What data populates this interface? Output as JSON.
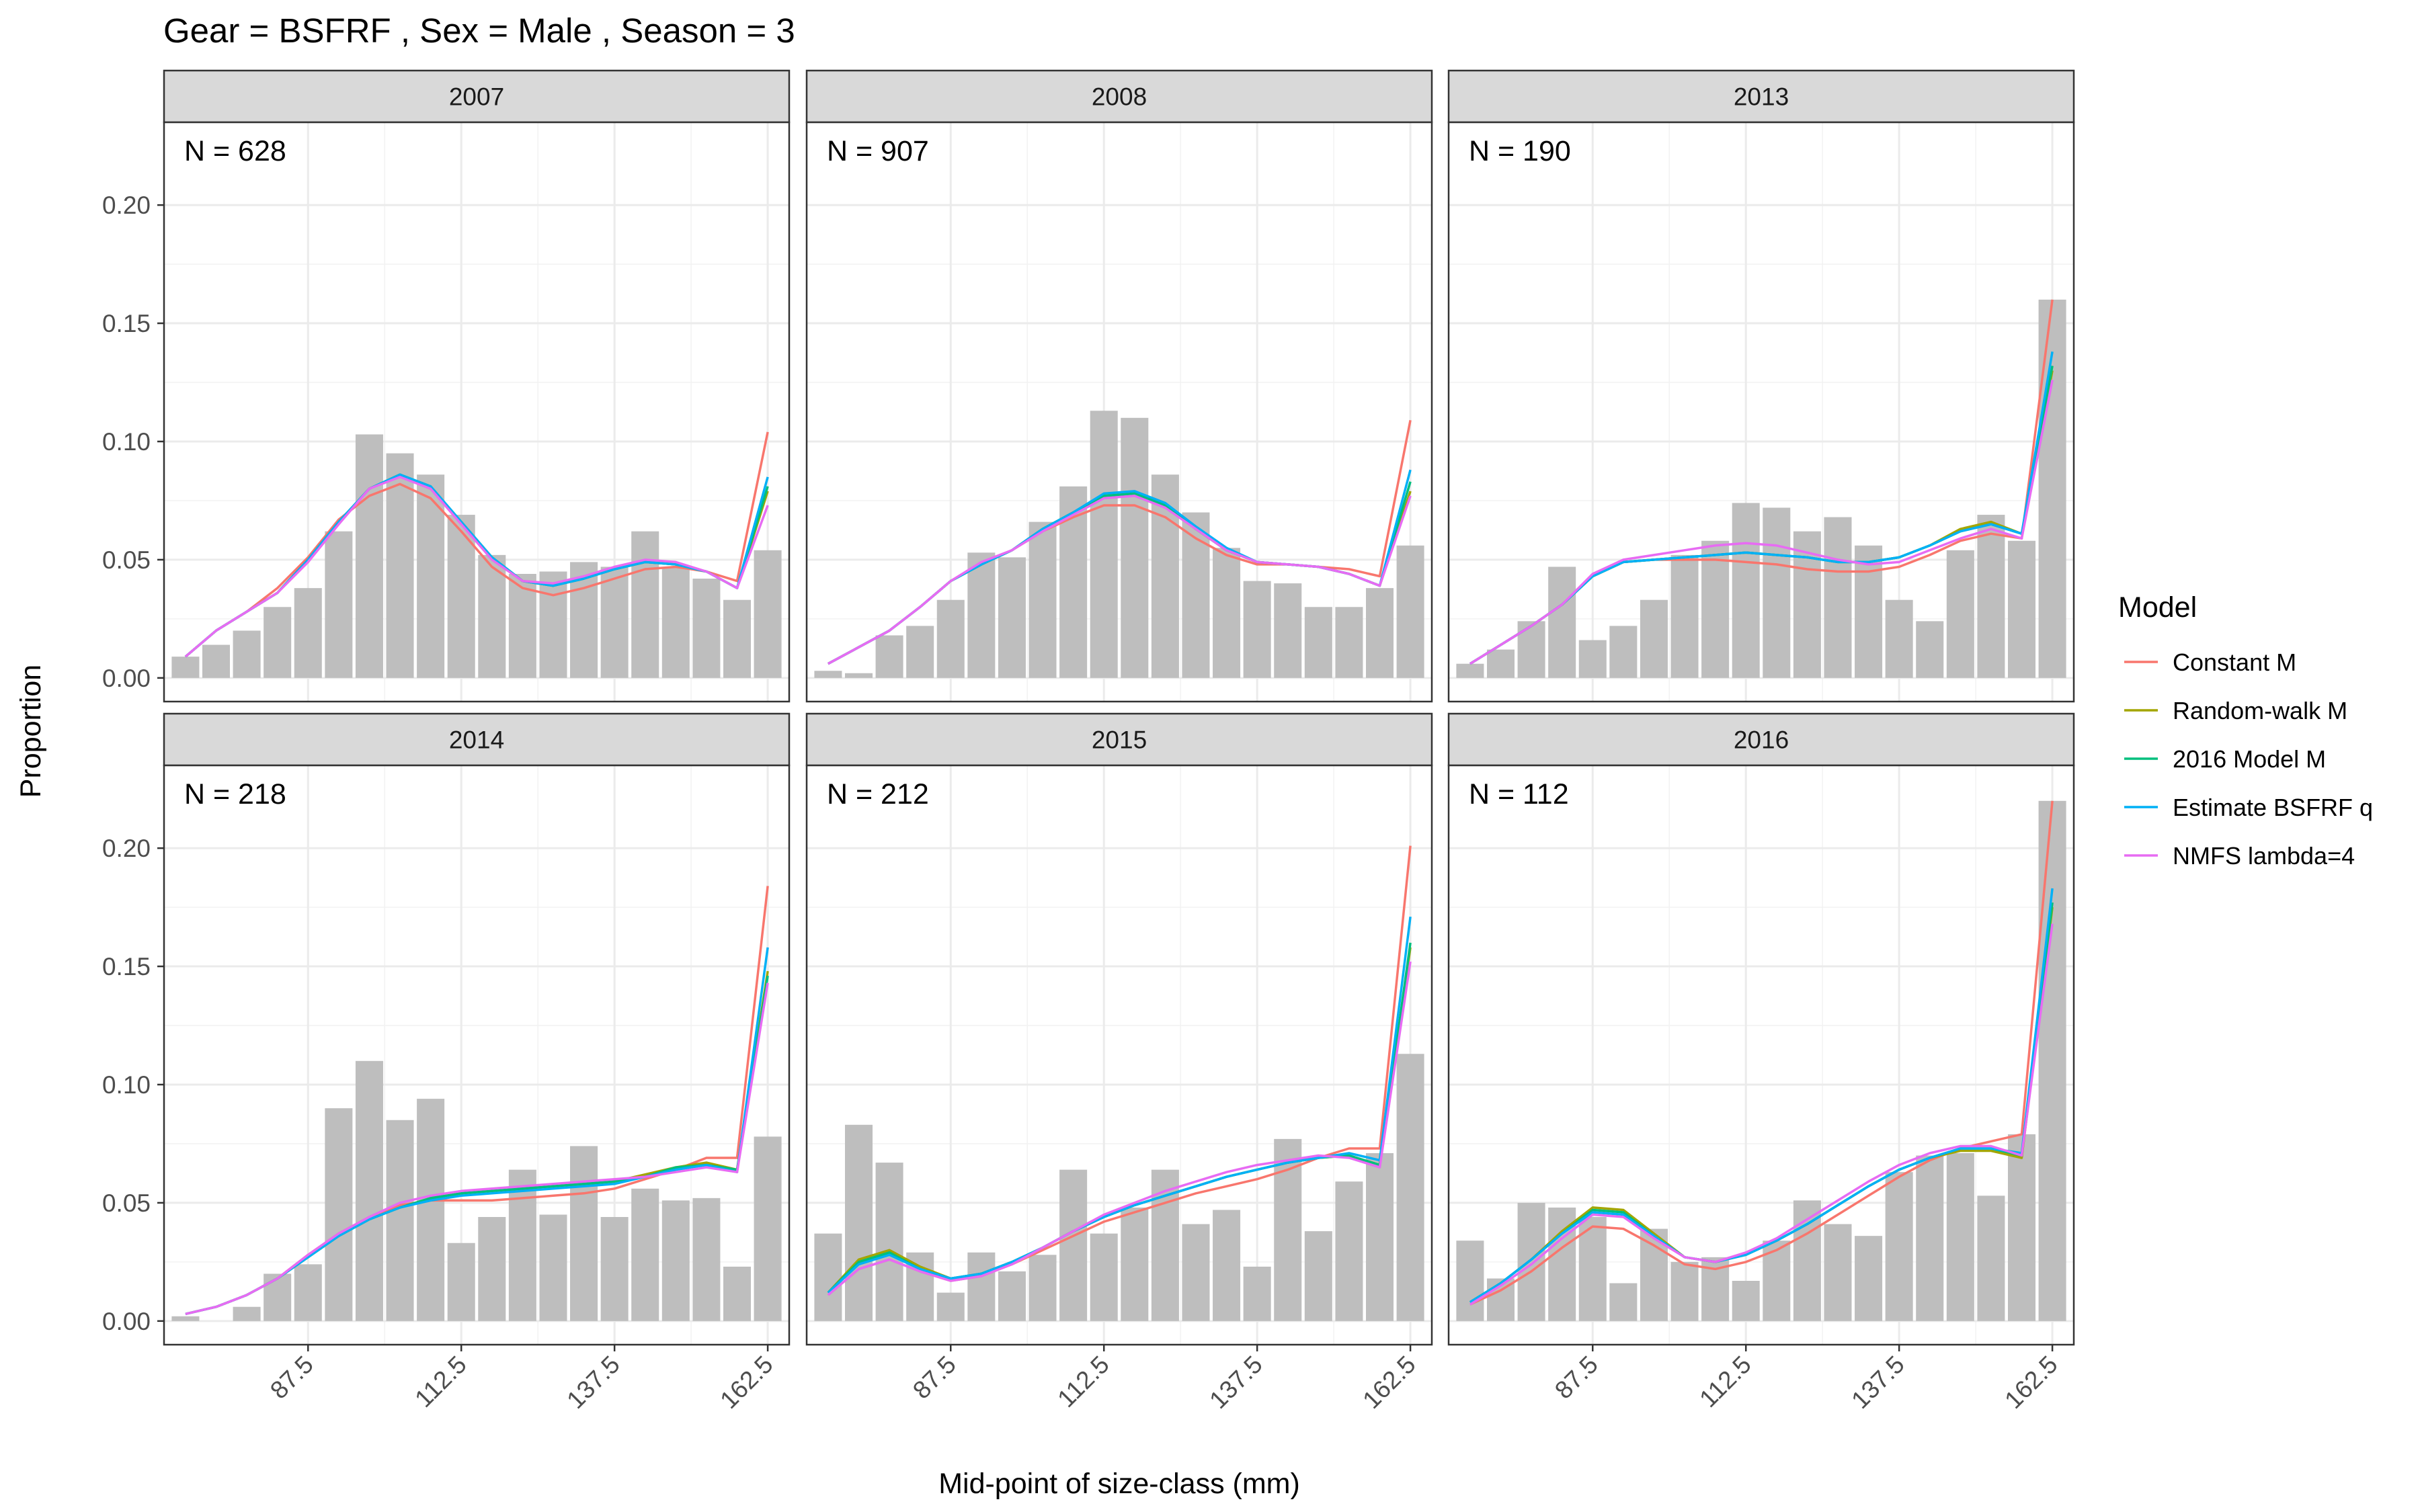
{
  "chart_data": {
    "type": "bar",
    "title": "Gear = BSFRF , Sex = Male , Season = 3",
    "xlabel": "Mid-point of size-class (mm)",
    "ylabel": "Proportion",
    "x": [
      67.5,
      72.5,
      77.5,
      82.5,
      87.5,
      92.5,
      97.5,
      102.5,
      107.5,
      112.5,
      117.5,
      122.5,
      127.5,
      132.5,
      137.5,
      142.5,
      147.5,
      152.5,
      157.5,
      162.5
    ],
    "xticks": [
      87.5,
      112.5,
      137.5,
      162.5
    ],
    "xtick_labels": [
      "87.5",
      "112.5",
      "137.5",
      "162.5"
    ],
    "xlim": [
      64.0,
      166.0
    ],
    "ylim": [
      -0.01,
      0.235
    ],
    "yticks": [
      0.0,
      0.05,
      0.1,
      0.15,
      0.2
    ],
    "ytick_labels": [
      "0.00",
      "0.05",
      "0.10",
      "0.15",
      "0.20"
    ],
    "grid": true,
    "bar_color": "#bebebe",
    "legend": {
      "title": "Model",
      "position": "right",
      "items": [
        {
          "name": "Constant M",
          "color": "#f8766d"
        },
        {
          "name": "Random-walk M",
          "color": "#a3a500"
        },
        {
          "name": "2016 Model M",
          "color": "#00bf7d"
        },
        {
          "name": "Estimate BSFRF q",
          "color": "#00b0f6"
        },
        {
          "name": "NMFS lambda=4",
          "color": "#e76bf3"
        }
      ]
    },
    "panels": [
      {
        "strip": "2007",
        "n_label": "N = 628",
        "bars": [
          0.009,
          0.014,
          0.02,
          0.03,
          0.038,
          0.062,
          0.103,
          0.095,
          0.086,
          0.069,
          0.052,
          0.044,
          0.045,
          0.049,
          0.047,
          0.062,
          0.047,
          0.042,
          0.033,
          0.054
        ],
        "series": [
          {
            "name": "Constant M",
            "values": [
              0.009,
              0.02,
              0.028,
              0.038,
              0.051,
              0.067,
              0.077,
              0.082,
              0.076,
              0.062,
              0.047,
              0.038,
              0.035,
              0.038,
              0.042,
              0.046,
              0.047,
              0.045,
              0.041,
              0.104
            ]
          },
          {
            "name": "Random-walk M",
            "values": [
              0.009,
              0.02,
              0.028,
              0.036,
              0.05,
              0.066,
              0.08,
              0.086,
              0.08,
              0.066,
              0.051,
              0.041,
              0.039,
              0.042,
              0.046,
              0.049,
              0.048,
              0.045,
              0.038,
              0.079
            ]
          },
          {
            "name": "2016 Model M",
            "values": [
              0.009,
              0.02,
              0.028,
              0.036,
              0.05,
              0.066,
              0.08,
              0.086,
              0.081,
              0.066,
              0.051,
              0.041,
              0.039,
              0.042,
              0.046,
              0.049,
              0.048,
              0.045,
              0.038,
              0.081
            ]
          },
          {
            "name": "Estimate BSFRF q",
            "values": [
              0.009,
              0.02,
              0.028,
              0.036,
              0.05,
              0.066,
              0.08,
              0.086,
              0.081,
              0.066,
              0.051,
              0.041,
              0.039,
              0.042,
              0.046,
              0.049,
              0.048,
              0.045,
              0.038,
              0.085
            ]
          },
          {
            "name": "NMFS lambda=4",
            "values": [
              0.009,
              0.02,
              0.028,
              0.036,
              0.049,
              0.065,
              0.08,
              0.085,
              0.08,
              0.065,
              0.05,
              0.041,
              0.04,
              0.043,
              0.047,
              0.05,
              0.049,
              0.045,
              0.038,
              0.073
            ]
          }
        ]
      },
      {
        "strip": "2008",
        "n_label": "N = 907",
        "bars": [
          0.003,
          0.002,
          0.018,
          0.022,
          0.033,
          0.053,
          0.051,
          0.066,
          0.081,
          0.113,
          0.11,
          0.086,
          0.07,
          0.055,
          0.041,
          0.04,
          0.03,
          0.03,
          0.038,
          0.056
        ],
        "series": [
          {
            "name": "Constant M",
            "values": [
              0.006,
              0.013,
              0.02,
              0.03,
              0.041,
              0.048,
              0.054,
              0.062,
              0.068,
              0.073,
              0.073,
              0.068,
              0.059,
              0.052,
              0.048,
              0.048,
              0.047,
              0.046,
              0.043,
              0.109
            ]
          },
          {
            "name": "Random-walk M",
            "values": [
              0.006,
              0.013,
              0.02,
              0.03,
              0.041,
              0.048,
              0.054,
              0.063,
              0.07,
              0.077,
              0.078,
              0.073,
              0.063,
              0.054,
              0.049,
              0.048,
              0.047,
              0.044,
              0.039,
              0.079
            ]
          },
          {
            "name": "2016 Model M",
            "values": [
              0.006,
              0.013,
              0.02,
              0.03,
              0.041,
              0.048,
              0.054,
              0.063,
              0.07,
              0.077,
              0.078,
              0.073,
              0.063,
              0.054,
              0.049,
              0.048,
              0.047,
              0.044,
              0.039,
              0.083
            ]
          },
          {
            "name": "Estimate BSFRF q",
            "values": [
              0.006,
              0.013,
              0.02,
              0.03,
              0.041,
              0.048,
              0.054,
              0.063,
              0.07,
              0.078,
              0.079,
              0.074,
              0.064,
              0.055,
              0.049,
              0.048,
              0.047,
              0.044,
              0.039,
              0.088
            ]
          },
          {
            "name": "NMFS lambda=4",
            "values": [
              0.006,
              0.013,
              0.02,
              0.03,
              0.041,
              0.049,
              0.054,
              0.062,
              0.069,
              0.076,
              0.077,
              0.072,
              0.063,
              0.054,
              0.049,
              0.048,
              0.047,
              0.044,
              0.039,
              0.077
            ]
          }
        ]
      },
      {
        "strip": "2013",
        "n_label": "N = 190",
        "bars": [
          0.006,
          0.012,
          0.024,
          0.047,
          0.016,
          0.022,
          0.033,
          0.052,
          0.058,
          0.074,
          0.072,
          0.062,
          0.068,
          0.056,
          0.033,
          0.024,
          0.054,
          0.069,
          0.058,
          0.16
        ],
        "series": [
          {
            "name": "Constant M",
            "values": [
              0.006,
              0.014,
              0.022,
              0.031,
              0.043,
              0.049,
              0.05,
              0.05,
              0.05,
              0.049,
              0.048,
              0.046,
              0.045,
              0.045,
              0.047,
              0.052,
              0.058,
              0.061,
              0.059,
              0.16
            ]
          },
          {
            "name": "Random-walk M",
            "values": [
              0.006,
              0.014,
              0.022,
              0.031,
              0.043,
              0.049,
              0.05,
              0.051,
              0.052,
              0.053,
              0.052,
              0.051,
              0.049,
              0.049,
              0.051,
              0.056,
              0.063,
              0.066,
              0.061,
              0.13
            ]
          },
          {
            "name": "2016 Model M",
            "values": [
              0.006,
              0.014,
              0.022,
              0.031,
              0.043,
              0.049,
              0.05,
              0.051,
              0.052,
              0.053,
              0.052,
              0.051,
              0.049,
              0.049,
              0.051,
              0.056,
              0.062,
              0.065,
              0.061,
              0.132
            ]
          },
          {
            "name": "Estimate BSFRF q",
            "values": [
              0.006,
              0.014,
              0.022,
              0.031,
              0.043,
              0.049,
              0.05,
              0.051,
              0.052,
              0.053,
              0.052,
              0.051,
              0.049,
              0.049,
              0.051,
              0.056,
              0.062,
              0.065,
              0.061,
              0.138
            ]
          },
          {
            "name": "NMFS lambda=4",
            "values": [
              0.006,
              0.014,
              0.022,
              0.031,
              0.044,
              0.05,
              0.052,
              0.054,
              0.056,
              0.057,
              0.056,
              0.053,
              0.05,
              0.048,
              0.049,
              0.054,
              0.059,
              0.063,
              0.059,
              0.126
            ]
          }
        ]
      },
      {
        "strip": "2014",
        "n_label": "N = 218",
        "bars": [
          0.002,
          0.0,
          0.006,
          0.02,
          0.024,
          0.09,
          0.11,
          0.085,
          0.094,
          0.033,
          0.044,
          0.064,
          0.045,
          0.074,
          0.044,
          0.056,
          0.051,
          0.052,
          0.023,
          0.078
        ],
        "series": [
          {
            "name": "Constant M",
            "values": [
              0.003,
              0.006,
              0.011,
              0.018,
              0.028,
              0.037,
              0.044,
              0.049,
              0.051,
              0.051,
              0.051,
              0.052,
              0.053,
              0.054,
              0.056,
              0.06,
              0.064,
              0.069,
              0.069,
              0.184
            ]
          },
          {
            "name": "Random-walk M",
            "values": [
              0.003,
              0.006,
              0.011,
              0.018,
              0.027,
              0.036,
              0.043,
              0.048,
              0.052,
              0.054,
              0.055,
              0.056,
              0.057,
              0.058,
              0.059,
              0.062,
              0.065,
              0.067,
              0.064,
              0.148
            ]
          },
          {
            "name": "2016 Model M",
            "values": [
              0.003,
              0.006,
              0.011,
              0.018,
              0.027,
              0.036,
              0.043,
              0.048,
              0.052,
              0.054,
              0.055,
              0.056,
              0.057,
              0.058,
              0.059,
              0.061,
              0.065,
              0.066,
              0.064,
              0.146
            ]
          },
          {
            "name": "Estimate BSFRF q",
            "values": [
              0.003,
              0.006,
              0.011,
              0.018,
              0.027,
              0.036,
              0.043,
              0.048,
              0.051,
              0.053,
              0.054,
              0.055,
              0.056,
              0.057,
              0.058,
              0.061,
              0.064,
              0.066,
              0.063,
              0.158
            ]
          },
          {
            "name": "NMFS lambda=4",
            "values": [
              0.003,
              0.006,
              0.011,
              0.018,
              0.028,
              0.037,
              0.044,
              0.05,
              0.053,
              0.055,
              0.056,
              0.057,
              0.058,
              0.059,
              0.06,
              0.061,
              0.063,
              0.065,
              0.063,
              0.143
            ]
          }
        ]
      },
      {
        "strip": "2015",
        "n_label": "N = 212",
        "bars": [
          0.037,
          0.083,
          0.067,
          0.029,
          0.012,
          0.029,
          0.021,
          0.028,
          0.064,
          0.037,
          0.048,
          0.064,
          0.041,
          0.047,
          0.023,
          0.077,
          0.038,
          0.059,
          0.071,
          0.113
        ],
        "series": [
          {
            "name": "Constant M",
            "values": [
              0.011,
              0.022,
              0.026,
              0.021,
              0.017,
              0.019,
              0.024,
              0.03,
              0.036,
              0.042,
              0.046,
              0.05,
              0.054,
              0.057,
              0.06,
              0.064,
              0.069,
              0.073,
              0.073,
              0.201
            ]
          },
          {
            "name": "Random-walk M",
            "values": [
              0.012,
              0.026,
              0.03,
              0.023,
              0.018,
              0.02,
              0.025,
              0.031,
              0.038,
              0.044,
              0.049,
              0.053,
              0.057,
              0.061,
              0.064,
              0.067,
              0.069,
              0.07,
              0.066,
              0.158
            ]
          },
          {
            "name": "2016 Model M",
            "values": [
              0.012,
              0.025,
              0.029,
              0.022,
              0.018,
              0.02,
              0.025,
              0.031,
              0.038,
              0.044,
              0.049,
              0.053,
              0.057,
              0.061,
              0.064,
              0.067,
              0.069,
              0.07,
              0.066,
              0.16
            ]
          },
          {
            "name": "Estimate BSFRF q",
            "values": [
              0.012,
              0.024,
              0.028,
              0.022,
              0.018,
              0.02,
              0.025,
              0.031,
              0.038,
              0.044,
              0.049,
              0.053,
              0.057,
              0.061,
              0.064,
              0.067,
              0.069,
              0.071,
              0.068,
              0.171
            ]
          },
          {
            "name": "NMFS lambda=4",
            "values": [
              0.011,
              0.022,
              0.026,
              0.021,
              0.017,
              0.019,
              0.024,
              0.031,
              0.038,
              0.045,
              0.05,
              0.055,
              0.059,
              0.063,
              0.066,
              0.068,
              0.07,
              0.069,
              0.065,
              0.152
            ]
          }
        ]
      },
      {
        "strip": "2016",
        "n_label": "N = 112",
        "bars": [
          0.034,
          0.018,
          0.05,
          0.048,
          0.044,
          0.016,
          0.039,
          0.025,
          0.027,
          0.017,
          0.034,
          0.051,
          0.041,
          0.036,
          0.063,
          0.07,
          0.071,
          0.053,
          0.079,
          0.22
        ],
        "series": [
          {
            "name": "Constant M",
            "values": [
              0.007,
              0.013,
              0.021,
              0.031,
              0.04,
              0.039,
              0.032,
              0.024,
              0.022,
              0.025,
              0.03,
              0.037,
              0.045,
              0.053,
              0.061,
              0.068,
              0.073,
              0.076,
              0.079,
              0.22
            ]
          },
          {
            "name": "Random-walk M",
            "values": [
              0.008,
              0.016,
              0.026,
              0.038,
              0.048,
              0.047,
              0.037,
              0.027,
              0.025,
              0.028,
              0.034,
              0.041,
              0.049,
              0.057,
              0.064,
              0.069,
              0.072,
              0.072,
              0.069,
              0.175
            ]
          },
          {
            "name": "2016 Model M",
            "values": [
              0.008,
              0.016,
              0.026,
              0.037,
              0.047,
              0.046,
              0.036,
              0.027,
              0.025,
              0.028,
              0.034,
              0.041,
              0.049,
              0.057,
              0.064,
              0.069,
              0.073,
              0.073,
              0.07,
              0.177
            ]
          },
          {
            "name": "Estimate BSFRF q",
            "values": [
              0.008,
              0.016,
              0.026,
              0.037,
              0.046,
              0.045,
              0.036,
              0.027,
              0.025,
              0.028,
              0.034,
              0.041,
              0.049,
              0.057,
              0.064,
              0.069,
              0.073,
              0.073,
              0.071,
              0.183
            ]
          },
          {
            "name": "NMFS lambda=4",
            "values": [
              0.007,
              0.015,
              0.024,
              0.035,
              0.045,
              0.044,
              0.035,
              0.027,
              0.025,
              0.029,
              0.035,
              0.043,
              0.051,
              0.059,
              0.066,
              0.071,
              0.074,
              0.074,
              0.07,
              0.168
            ]
          }
        ]
      }
    ]
  }
}
